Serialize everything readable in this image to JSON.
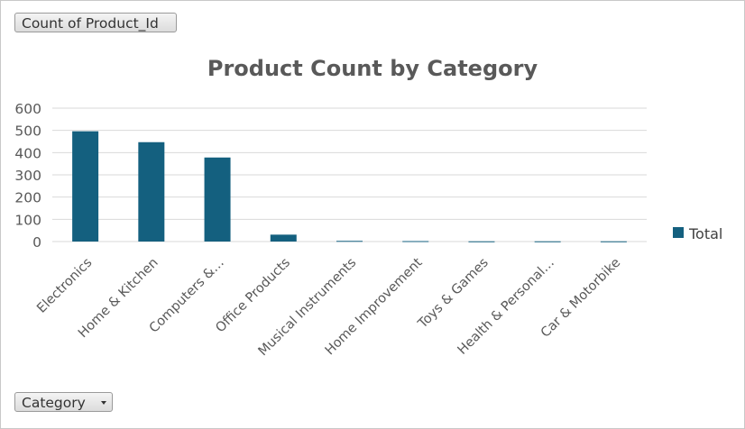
{
  "pivot": {
    "values_field": "Count of Product_Id",
    "axis_field": "Category"
  },
  "colors": {
    "bar": "#14607f",
    "grid": "#d9d9d9",
    "text": "#595959"
  },
  "chart_data": {
    "type": "bar",
    "title": "Product Count by Category",
    "xlabel": "",
    "ylabel": "",
    "ylim": [
      0,
      600
    ],
    "yticks": [
      0,
      100,
      200,
      300,
      400,
      500,
      600
    ],
    "grid": true,
    "legend_position": "right",
    "categories": [
      "Electronics",
      "Home & Kitchen",
      "Computers &…",
      "Office Products",
      "Musical Instruments",
      "Home Improvement",
      "Toys & Games",
      "Health & Personal…",
      "Car & Motorbike"
    ],
    "series": [
      {
        "name": "Total",
        "values": [
          496,
          447,
          378,
          31,
          3,
          2,
          1,
          1,
          1
        ]
      }
    ]
  }
}
